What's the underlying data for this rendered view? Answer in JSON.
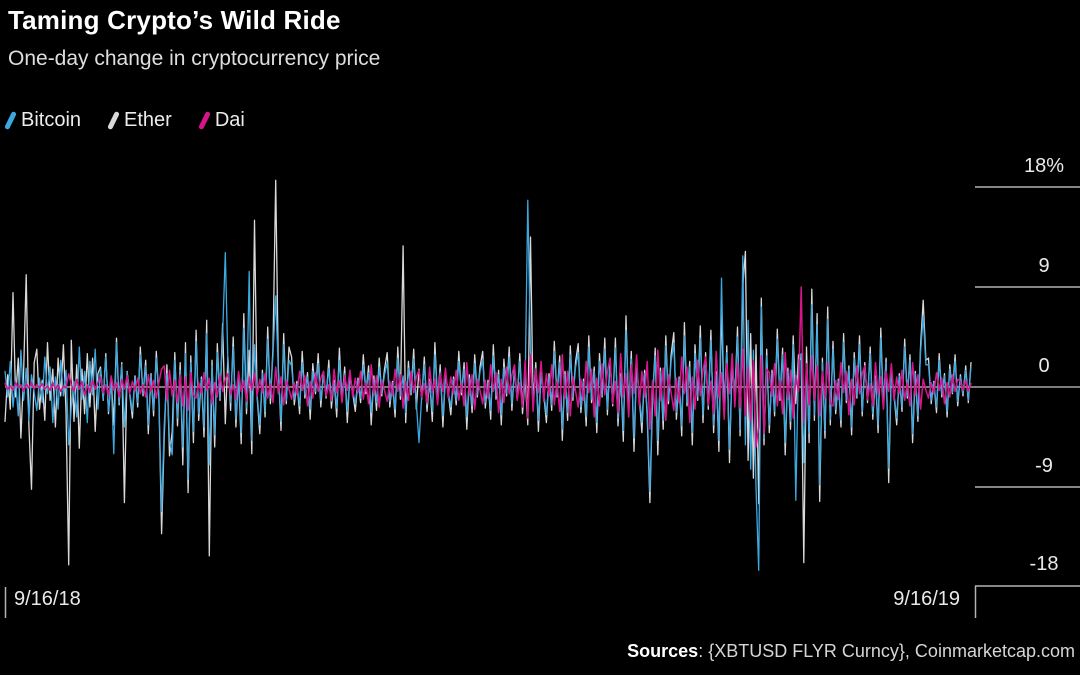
{
  "header": {
    "title": "Taming Crypto’s Wild Ride",
    "subtitle": "One-day change in cryptocurrency price"
  },
  "legend": [
    {
      "label": "Bitcoin",
      "color": "#3da8e0"
    },
    {
      "label": "Ether",
      "color": "#d9d9d9"
    },
    {
      "label": "Dai",
      "color": "#d6158c"
    }
  ],
  "axis": {
    "y_tick_labels": [
      "18%",
      "9",
      "0",
      "-9",
      "-18"
    ],
    "x_start_label": "9/16/18",
    "x_end_label": "9/16/19"
  },
  "source_note": {
    "label": "Sources",
    "rest": ": {XBTUSD FLYR Curncy}, Coinmarketcap.com"
  },
  "colors": {
    "background": "#000000",
    "axis_line": "#b3b3b3",
    "zero_line": "#c6c6c6",
    "text": "#e9e9e9"
  },
  "chart_data": {
    "type": "line",
    "title": "Taming Crypto’s Wild Ride",
    "subtitle": "One-day change in cryptocurrency price",
    "x_range": [
      "9/16/18",
      "9/16/19"
    ],
    "x_points": "daily, 365 values per series",
    "y_unit": "%",
    "y_ticks": [
      18,
      9,
      0,
      -9,
      -18
    ],
    "ylim": [
      -20,
      20
    ],
    "grid": "right-side tick segments only, zero baseline across plot",
    "legend_position": "top-left",
    "series": [
      {
        "name": "Bitcoin",
        "color": "#3da8e0",
        "values": [
          1.4,
          -0.9,
          2.3,
          -1.8,
          0.6,
          -2.6,
          3.3,
          -1.2,
          1.7,
          -3.0,
          1.1,
          -0.5,
          -2.1,
          0.8,
          -1.4,
          2.7,
          -0.6,
          1.8,
          -3.2,
          0.9,
          -2.0,
          2.4,
          -0.8,
          1.5,
          -5.2,
          -1.8,
          0.5,
          -2.7,
          3.6,
          -1.1,
          1.4,
          -3.2,
          2.3,
          -0.7,
          3.4,
          -2.0,
          1.6,
          -1.1,
          2.7,
          -2.2,
          0.7,
          -6.0,
          4.0,
          -1.4,
          2.0,
          -3.6,
          1.3,
          -0.5,
          -2.2,
          0.8,
          -1.4,
          2.9,
          -0.6,
          1.9,
          -3.4,
          1.0,
          -2.1,
          2.6,
          -0.8,
          -11.2,
          -3.5,
          1.2,
          -4.8,
          -6.1,
          2.4,
          -2.8,
          1.5,
          -5.4,
          3.0,
          -8.3,
          2.2,
          -4.0,
          4.1,
          -2.4,
          0.7,
          -3.6,
          4.8,
          -7.0,
          1.9,
          -4.3,
          3.1,
          -1.0,
          4.6,
          12.1,
          2.2,
          -1.4,
          3.6,
          -2.9,
          1.0,
          -4.1,
          5.3,
          -1.9,
          10.4,
          -4.8,
          3.8,
          -0.7,
          -3.4,
          1.2,
          -2.2,
          4.3,
          -1.0,
          2.9,
          8.2,
          1.4,
          -3.1,
          3.8,
          -1.2,
          2.4,
          1.9,
          -1.1,
          0.3,
          -1.7,
          2.2,
          -0.7,
          0.9,
          -2.0,
          1.4,
          -0.4,
          2.1,
          -1.2,
          1.0,
          -0.7,
          1.7,
          -1.3,
          0.4,
          -1.9,
          2.4,
          -0.9,
          1.2,
          -2.2,
          0.8,
          -0.3,
          -1.5,
          0.6,
          -1.0,
          2.0,
          -0.4,
          1.3,
          -2.3,
          0.7,
          -1.4,
          1.8,
          -0.6,
          1.1,
          2.2,
          -1.3,
          0.4,
          -2.0,
          2.6,
          -0.8,
          1.0,
          -2.3,
          1.7,
          -0.5,
          2.5,
          -1.4,
          -5.0,
          -0.8,
          2.0,
          -1.6,
          0.5,
          -2.2,
          2.9,
          -1.0,
          1.4,
          -2.6,
          0.9,
          -0.4,
          -1.8,
          0.7,
          -1.2,
          2.3,
          -0.5,
          1.6,
          -2.7,
          0.8,
          -1.7,
          2.1,
          -0.7,
          1.4,
          2.4,
          -1.4,
          0.4,
          -2.1,
          2.8,
          -0.8,
          1.1,
          -2.5,
          1.8,
          -0.6,
          2.7,
          -1.5,
          1.4,
          -0.9,
          2.3,
          -1.8,
          0.6,
          16.8,
          3.3,
          -1.2,
          1.7,
          -3.0,
          1.1,
          -0.5,
          -2.5,
          0.9,
          -1.6,
          3.2,
          -0.7,
          2.2,
          -3.8,
          1.1,
          -2.3,
          2.9,
          -0.9,
          1.8,
          3.1,
          -1.8,
          0.5,
          -2.7,
          3.6,
          -1.1,
          1.4,
          -3.2,
          2.3,
          -0.7,
          3.4,
          -2.0,
          2.1,
          -1.4,
          3.5,
          -2.8,
          0.9,
          -3.9,
          5.1,
          -1.8,
          2.5,
          -4.6,
          1.6,
          -0.7,
          -3.2,
          1.2,
          -2.1,
          -9.4,
          -0.9,
          2.8,
          -4.8,
          1.4,
          -3.0,
          3.7,
          -1.2,
          2.3,
          3.9,
          -2.3,
          0.7,
          -3.5,
          4.6,
          -1.4,
          1.8,
          -4.1,
          3.0,
          -0.9,
          4.4,
          -2.5,
          2.5,
          -1.7,
          4.2,
          -3.4,
          1.1,
          -4.8,
          9.8,
          -2.2,
          3.1,
          -5.6,
          2.0,
          -0.8,
          4.5,
          -3.8,
          11.8,
          -5.2,
          6.0,
          -7.4,
          3.3,
          -9.0,
          -16.5,
          7.2,
          -4.6,
          2.8,
          -3.4,
          1.2,
          -2.2,
          4.3,
          -1.0,
          2.9,
          -5.0,
          1.4,
          -3.1,
          3.8,
          -10.2,
          2.4,
          3.0,
          -6.8,
          1.9,
          -4.2,
          7.4,
          -2.5,
          5.6,
          -8.8,
          2.2,
          -3.9,
          6.1,
          -2.9,
          3.4,
          -2.0,
          0.6,
          -3.0,
          4.0,
          -1.2,
          1.6,
          -3.6,
          2.6,
          -0.8,
          3.8,
          -2.2,
          1.8,
          -1.2,
          3.0,
          -2.4,
          0.8,
          -3.4,
          4.4,
          -1.6,
          2.2,
          -7.3,
          1.4,
          -0.6,
          -2.8,
          1.0,
          -1.8,
          3.6,
          -0.8,
          2.4,
          -4.2,
          1.2,
          -2.6,
          3.2,
          6.4,
          2.0,
          2.0,
          -1.2,
          0.4,
          -1.8,
          2.4,
          -0.7,
          1.0,
          -2.2,
          1.6,
          -0.5,
          2.3,
          -1.3,
          0.9,
          -0.6,
          1.5,
          -1.2,
          1.8
        ]
      },
      {
        "name": "Ether",
        "color": "#d9d9d9",
        "values": [
          -3.1,
          1.1,
          -2.0,
          8.5,
          -0.9,
          2.6,
          -4.6,
          1.3,
          10.1,
          -3.5,
          -9.2,
          2.2,
          3.4,
          -2.0,
          0.6,
          -3.0,
          4.0,
          -1.2,
          1.6,
          -3.6,
          2.6,
          -0.8,
          3.8,
          -2.2,
          -16.0,
          4.2,
          -3.1,
          2.0,
          -5.5,
          1.6,
          -2.4,
          3.0,
          -1.8,
          2.6,
          -4.0,
          1.2,
          1.8,
          -1.2,
          3.0,
          -2.4,
          0.8,
          -3.4,
          4.4,
          -1.6,
          2.2,
          -10.4,
          1.4,
          -0.6,
          -2.8,
          1.0,
          -1.8,
          3.6,
          -0.8,
          2.4,
          -4.2,
          1.2,
          -2.6,
          3.2,
          -1.0,
          -13.2,
          -4.6,
          2.0,
          -6.2,
          -4.0,
          3.1,
          -3.5,
          2.2,
          -7.0,
          4.0,
          -9.5,
          2.8,
          -5.0,
          5.1,
          -3.0,
          0.9,
          -4.5,
          6.0,
          -15.2,
          2.4,
          -5.4,
          3.9,
          -1.2,
          5.7,
          -3.3,
          2.7,
          -2.1,
          4.5,
          -3.6,
          1.2,
          -5.1,
          6.6,
          -2.4,
          3.3,
          -6.0,
          15.0,
          -0.9,
          -4.2,
          1.5,
          -2.7,
          5.4,
          -1.5,
          3.6,
          18.6,
          1.8,
          -3.9,
          4.8,
          -1.5,
          3.6,
          2.7,
          -1.6,
          0.5,
          -2.4,
          3.2,
          -1.0,
          1.3,
          -2.9,
          2.1,
          -0.6,
          3.0,
          -1.8,
          1.4,
          -1.0,
          2.4,
          -1.9,
          0.6,
          -2.7,
          3.5,
          -1.3,
          1.8,
          -3.2,
          1.1,
          -0.5,
          -2.2,
          0.8,
          -1.4,
          2.9,
          -0.6,
          1.9,
          -3.4,
          1.0,
          -2.1,
          2.6,
          -0.8,
          1.6,
          3.1,
          -1.8,
          0.5,
          -2.7,
          3.6,
          -1.1,
          12.7,
          -3.2,
          2.3,
          -0.7,
          3.4,
          -2.0,
          1.6,
          -1.1,
          2.7,
          -2.2,
          0.7,
          -3.1,
          4.0,
          -1.4,
          2.0,
          -3.6,
          1.3,
          -0.5,
          -2.5,
          0.9,
          -1.6,
          3.2,
          -0.7,
          2.2,
          -3.8,
          1.1,
          -2.3,
          2.9,
          -0.9,
          1.8,
          3.2,
          -1.9,
          0.6,
          -2.9,
          3.8,
          -1.1,
          1.5,
          -3.4,
          2.5,
          -0.8,
          3.6,
          -2.1,
          1.8,
          -1.2,
          3.0,
          -2.4,
          0.8,
          -3.4,
          13.5,
          -1.6,
          2.2,
          -4.0,
          1.4,
          -0.6,
          -3.2,
          1.2,
          -2.1,
          4.1,
          -0.9,
          2.8,
          -4.8,
          1.4,
          -3.0,
          3.7,
          -1.2,
          2.3,
          3.9,
          -2.3,
          0.7,
          -3.5,
          4.6,
          -1.4,
          1.8,
          -4.1,
          3.0,
          -0.9,
          4.4,
          -2.5,
          2.6,
          -1.7,
          4.4,
          -3.5,
          1.2,
          -4.9,
          6.4,
          -2.3,
          3.2,
          -5.8,
          2.0,
          -0.9,
          -4.1,
          1.5,
          -2.6,
          -10.4,
          -1.2,
          3.5,
          -6.1,
          1.7,
          -3.8,
          4.6,
          -1.5,
          2.9,
          4.9,
          -2.9,
          0.9,
          -4.4,
          5.8,
          -1.7,
          2.3,
          -5.2,
          3.8,
          -1.2,
          5.5,
          -3.2,
          3.1,
          -2.0,
          5.1,
          -4.1,
          1.4,
          -5.8,
          7.5,
          -2.7,
          3.7,
          -6.8,
          2.4,
          -1.0,
          5.4,
          -4.4,
          9.0,
          12.2,
          -6.6,
          4.8,
          -8.2,
          3.8,
          -10.5,
          8.0,
          -5.2,
          3.4,
          -4.1,
          1.5,
          -2.6,
          5.2,
          -1.2,
          3.5,
          -6.1,
          1.7,
          -3.8,
          4.6,
          -1.5,
          2.9,
          2.4,
          -15.8,
          3.6,
          -5.0,
          8.8,
          -3.0,
          6.6,
          -10.3,
          2.6,
          -4.6,
          7.2,
          -3.4,
          4.1,
          -2.4,
          0.7,
          -3.6,
          4.8,
          -1.4,
          1.9,
          -4.3,
          3.1,
          -1.0,
          4.6,
          -2.6,
          2.2,
          -1.4,
          3.6,
          -2.9,
          1.0,
          -4.1,
          5.3,
          -1.9,
          2.6,
          -8.6,
          1.7,
          -0.7,
          -3.4,
          1.2,
          -2.2,
          4.3,
          -1.0,
          2.9,
          -5.0,
          1.4,
          -3.1,
          3.8,
          7.8,
          2.4,
          2.6,
          -1.5,
          0.5,
          -2.3,
          3.0,
          -0.9,
          1.2,
          -2.7,
          2.0,
          -0.6,
          2.9,
          -1.7,
          1.1,
          -0.8,
          1.9,
          -1.4,
          2.2
        ]
      },
      {
        "name": "Dai",
        "color": "#d6158c",
        "values": [
          0.3,
          -0.2,
          0.1,
          -0.3,
          0.4,
          -0.1,
          0.2,
          -0.4,
          0.3,
          -0.1,
          0.4,
          -0.2,
          0.2,
          -0.1,
          0.3,
          -0.2,
          0.1,
          -0.3,
          0.4,
          -0.2,
          0.2,
          -0.4,
          0.1,
          -0.1,
          1.2,
          0.2,
          -0.4,
          0.7,
          -0.2,
          0.5,
          -0.8,
          0.2,
          -0.5,
          0.6,
          -0.2,
          0.4,
          0.9,
          -0.5,
          0.2,
          -0.8,
          1.0,
          -0.3,
          0.4,
          -0.9,
          0.7,
          -0.2,
          1.0,
          -0.6,
          0.5,
          -0.3,
          0.8,
          -0.6,
          0.2,
          -0.9,
          1.1,
          -0.4,
          0.6,
          -1.0,
          0.4,
          1.6,
          1.9,
          -1.2,
          1.5,
          -0.8,
          0.6,
          -1.4,
          1.1,
          -1.7,
          0.9,
          -2.1,
          1.3,
          -0.7,
          -1.0,
          0.4,
          -0.6,
          1.3,
          -0.3,
          0.8,
          -1.5,
          0.4,
          -0.9,
          1.1,
          -0.4,
          0.7,
          1.2,
          -0.7,
          0.2,
          -1.1,
          1.4,
          -0.4,
          0.6,
          -1.3,
          0.9,
          -0.3,
          1.3,
          -0.8,
          0.7,
          -0.5,
          1.2,
          -1.0,
          0.3,
          -1.4,
          1.8,
          -0.6,
          0.9,
          -1.6,
          0.6,
          -0.2,
          -1.1,
          0.4,
          -0.7,
          1.4,
          -0.3,
          1.0,
          -1.7,
          0.5,
          -1.0,
          1.3,
          -0.4,
          0.8,
          1.4,
          -0.8,
          0.2,
          -1.2,
          1.6,
          -0.5,
          0.6,
          -1.4,
          1.0,
          -0.3,
          1.5,
          -0.9,
          0.8,
          -0.5,
          1.4,
          -1.1,
          0.4,
          -1.5,
          2.0,
          -0.7,
          1.0,
          -1.8,
          0.6,
          -0.3,
          -1.3,
          0.5,
          -0.8,
          1.6,
          -0.4,
          1.1,
          -1.9,
          0.5,
          -1.2,
          1.4,
          -0.5,
          0.9,
          1.5,
          -0.9,
          0.3,
          -1.4,
          1.8,
          -0.5,
          0.7,
          -1.6,
          1.2,
          -0.4,
          1.7,
          -1.0,
          0.9,
          -0.6,
          1.5,
          -1.2,
          0.4,
          -1.7,
          2.2,
          -0.8,
          1.1,
          -2.0,
          0.7,
          -0.3,
          -1.5,
          0.6,
          -1.0,
          2.0,
          -0.4,
          1.3,
          -2.3,
          0.7,
          -1.4,
          1.8,
          -0.6,
          1.1,
          2.0,
          -1.2,
          0.4,
          -1.8,
          2.4,
          -2.8,
          2.9,
          -2.2,
          1.6,
          -0.5,
          2.3,
          -1.3,
          1.2,
          -0.8,
          2.0,
          -1.6,
          0.5,
          -2.2,
          2.9,
          -1.0,
          1.4,
          -2.6,
          0.9,
          -0.4,
          -1.8,
          0.7,
          -1.2,
          2.3,
          -0.5,
          1.6,
          -2.7,
          0.8,
          -1.7,
          2.1,
          -0.7,
          1.4,
          2.6,
          -1.5,
          0.5,
          -2.3,
          3.0,
          -0.9,
          1.2,
          -2.7,
          2.0,
          -0.6,
          2.9,
          -1.7,
          1.4,
          -0.9,
          2.3,
          -3.8,
          0.6,
          -2.6,
          3.3,
          -1.2,
          1.7,
          -3.0,
          1.1,
          -0.5,
          -2.1,
          0.8,
          -1.4,
          2.7,
          -0.6,
          1.8,
          -3.2,
          0.9,
          -2.0,
          2.4,
          -0.8,
          1.5,
          2.7,
          -1.6,
          0.5,
          -2.4,
          3.2,
          -1.0,
          1.3,
          -2.9,
          2.1,
          -0.6,
          3.0,
          -1.8,
          2.2,
          -1.9,
          3.4,
          -2.6,
          1.8,
          -3.1,
          2.4,
          -5.4,
          -3.6,
          2.8,
          -4.2,
          1.6,
          1.3,
          -0.8,
          2.1,
          -1.7,
          0.6,
          -2.4,
          3.1,
          -1.1,
          1.5,
          -2.8,
          1.0,
          -0.4,
          9.0,
          -3.2,
          2.1,
          -1.6,
          2.8,
          -1.2,
          1.9,
          -2.6,
          1.4,
          -1.0,
          2.2,
          -1.5,
          -1.7,
          0.6,
          -1.1,
          2.2,
          -0.5,
          1.4,
          -2.5,
          0.7,
          -1.6,
          1.9,
          -0.6,
          1.2,
          1.9,
          -1.1,
          0.3,
          -1.7,
          2.2,
          -0.7,
          0.9,
          -2.0,
          1.4,
          -0.4,
          2.1,
          -1.2,
          0.9,
          -0.6,
          1.5,
          -1.2,
          0.4,
          -1.7,
          2.2,
          -0.8,
          1.1,
          -2.0,
          0.7,
          -0.3,
          -1.0,
          0.4,
          -0.6,
          1.3,
          -0.3,
          0.8,
          -1.5,
          0.4,
          -0.9,
          1.1,
          -0.4,
          0.7,
          0.5,
          -0.3,
          0.6,
          -0.4,
          0.3
        ]
      }
    ]
  }
}
